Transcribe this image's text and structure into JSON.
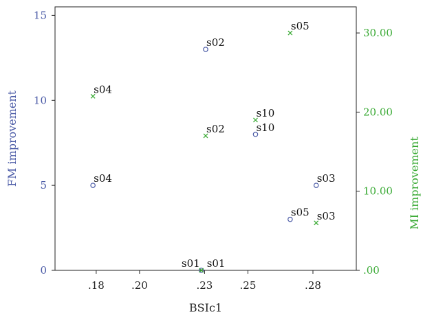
{
  "chart_data": {
    "type": "scatter",
    "xlabel": "BSIc1",
    "ylabel_left": "FM improvement",
    "ylabel_right": "MI improvement",
    "xlim": [
      0.161,
      0.3
    ],
    "ylim_left": [
      0,
      15.5
    ],
    "ylim_right": [
      0,
      33.3
    ],
    "x_ticks": [
      {
        "value": 0.18,
        "label": ".18"
      },
      {
        "value": 0.2,
        "label": ".20"
      },
      {
        "value": 0.23,
        "label": ".23"
      },
      {
        "value": 0.25,
        "label": ".25"
      },
      {
        "value": 0.28,
        "label": ".28"
      }
    ],
    "y_left_ticks": [
      {
        "value": 0,
        "label": "0"
      },
      {
        "value": 5,
        "label": "5"
      },
      {
        "value": 10,
        "label": "10"
      },
      {
        "value": 15,
        "label": "15"
      }
    ],
    "y_right_ticks": [
      {
        "value": 0,
        "label": ".00"
      },
      {
        "value": 10,
        "label": "10.00"
      },
      {
        "value": 20,
        "label": "20.00"
      },
      {
        "value": 30,
        "label": "30.00"
      }
    ],
    "series": [
      {
        "axis": "left",
        "marker": "circle",
        "color": "#4a5aa6",
        "points": [
          {
            "label": "s01",
            "x": 0.2285,
            "y": 0
          },
          {
            "label": "s02",
            "x": 0.2305,
            "y": 13
          },
          {
            "label": "s03",
            "x": 0.2815,
            "y": 5
          },
          {
            "label": "s04",
            "x": 0.1785,
            "y": 5
          },
          {
            "label": "s05",
            "x": 0.2695,
            "y": 3
          },
          {
            "label": "s10",
            "x": 0.2535,
            "y": 8
          }
        ]
      },
      {
        "axis": "right",
        "marker": "x",
        "color": "#3aaa35",
        "points": [
          {
            "label": "s01",
            "x": 0.2285,
            "y": 0
          },
          {
            "label": "s02",
            "x": 0.2305,
            "y": 17
          },
          {
            "label": "s03",
            "x": 0.2815,
            "y": 6
          },
          {
            "label": "s04",
            "x": 0.1785,
            "y": 22
          },
          {
            "label": "s05",
            "x": 0.2695,
            "y": 30
          },
          {
            "label": "s10",
            "x": 0.2535,
            "y": 19
          }
        ]
      }
    ],
    "grid": false,
    "legend": "none"
  }
}
